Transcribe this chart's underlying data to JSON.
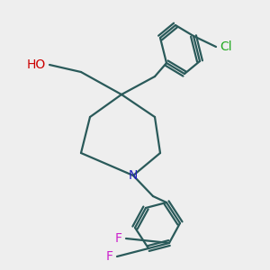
{
  "bg_color": "#eeeeee",
  "bond_color": "#2a5a5a",
  "bond_width": 1.6,
  "label_HO": {
    "text": "HO",
    "color": "#cc0000"
  },
  "label_N": {
    "text": "N",
    "color": "#2222bb"
  },
  "label_Cl": {
    "text": "Cl",
    "color": "#22aa22"
  },
  "label_F1": {
    "text": "F",
    "color": "#cc22cc"
  },
  "label_F2": {
    "text": "F",
    "color": "#cc22cc"
  },
  "fontsize": 10
}
